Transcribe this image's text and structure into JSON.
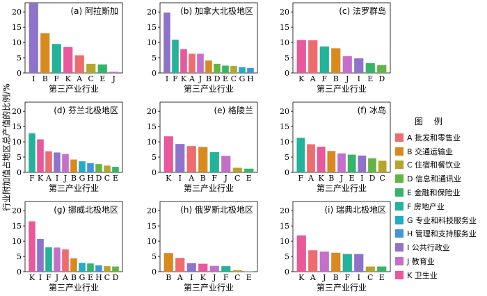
{
  "y_axis_label": "行业附加值占地区总产值的比例/%",
  "legend": {
    "title": "图 例",
    "items": [
      {
        "code": "A",
        "label": "A 批发和零售业",
        "color": "#ee6b6e"
      },
      {
        "code": "B",
        "label": "B 交通运输业",
        "color": "#d98a1f"
      },
      {
        "code": "C",
        "label": "C 住宿和餐饮业",
        "color": "#b5a62b"
      },
      {
        "code": "D",
        "label": "D 信息和通讯业",
        "color": "#63b542"
      },
      {
        "code": "E",
        "label": "E 金融和保险业",
        "color": "#35b567"
      },
      {
        "code": "F",
        "label": "F 房地产业",
        "color": "#23b39a"
      },
      {
        "code": "G",
        "label": "G 专业和科技服务业",
        "color": "#22acc5"
      },
      {
        "code": "H",
        "label": "H 管理和支持服务业",
        "color": "#3f95d8"
      },
      {
        "code": "I",
        "label": "I 公共行政业",
        "color": "#8d73c9"
      },
      {
        "code": "J",
        "label": "J 教育业",
        "color": "#c46fca"
      },
      {
        "code": "K",
        "label": "K 卫生业",
        "color": "#e8589a"
      }
    ]
  },
  "chart_data": [
    {
      "type": "bar",
      "title": "(a) 阿拉斯加",
      "xlabel": "第三产业行业",
      "ylim": [
        0,
        23
      ],
      "yticks": [
        0,
        5,
        10,
        15,
        20
      ],
      "categories": [
        "I",
        "B",
        "F",
        "K",
        "A",
        "C",
        "E",
        "J"
      ],
      "values": [
        22.8,
        13.0,
        9.5,
        8.5,
        5.8,
        3.0,
        2.8,
        0.4
      ]
    },
    {
      "type": "bar",
      "title": "(b) 加拿大北极地区",
      "xlabel": "第三产业行业",
      "ylim": [
        0,
        23
      ],
      "yticks": [
        0,
        5,
        10,
        15,
        20
      ],
      "categories": [
        "I",
        "F",
        "K",
        "A",
        "J",
        "B",
        "D",
        "E",
        "C",
        "G",
        "H"
      ],
      "values": [
        19.8,
        10.9,
        7.8,
        6.3,
        6.3,
        4.1,
        3.0,
        2.4,
        2.3,
        1.9,
        1.6
      ]
    },
    {
      "type": "bar",
      "title": "(c) 法罗群岛",
      "xlabel": "第三产业行业",
      "ylim": [
        0,
        23
      ],
      "yticks": [
        0,
        5,
        10,
        15,
        20
      ],
      "categories": [
        "K",
        "A",
        "F",
        "B",
        "J",
        "I",
        "E",
        "D"
      ],
      "values": [
        10.8,
        10.7,
        8.7,
        8.1,
        5.5,
        4.8,
        3.2,
        2.6
      ]
    },
    {
      "type": "bar",
      "title": "(d) 芬兰北极地区",
      "xlabel": "第三产业行业",
      "ylim": [
        0,
        23
      ],
      "yticks": [
        0,
        5,
        10,
        15,
        20
      ],
      "categories": [
        "F",
        "K",
        "A",
        "I",
        "J",
        "B",
        "G",
        "H",
        "D",
        "C",
        "E"
      ],
      "values": [
        12.8,
        10.8,
        6.9,
        6.5,
        6.0,
        4.2,
        3.6,
        3.0,
        2.7,
        2.2,
        1.8
      ]
    },
    {
      "type": "bar",
      "title": "(e) 格陵兰",
      "xlabel": "第三产业行业",
      "ylim": [
        0,
        23
      ],
      "yticks": [
        0,
        5,
        10,
        15,
        20
      ],
      "categories": [
        "K",
        "I",
        "A",
        "B",
        "F",
        "J",
        "C",
        "E"
      ],
      "values": [
        11.8,
        9.3,
        8.6,
        8.3,
        6.6,
        5.4,
        1.5,
        1.2
      ]
    },
    {
      "type": "bar",
      "title": "(f) 冰岛",
      "xlabel": "第三产业行业",
      "ylim": [
        0,
        23
      ],
      "yticks": [
        0,
        5,
        10,
        15,
        20
      ],
      "categories": [
        "F",
        "A",
        "K",
        "B",
        "J",
        "E",
        "I",
        "D",
        "C"
      ],
      "values": [
        11.3,
        9.2,
        8.4,
        7.0,
        6.2,
        5.8,
        5.5,
        4.6,
        3.8
      ]
    },
    {
      "type": "bar",
      "title": "(g) 挪威北极地区",
      "xlabel": "第三产业行业",
      "ylim": [
        0,
        23
      ],
      "yticks": [
        0,
        5,
        10,
        15,
        20
      ],
      "categories": [
        "K",
        "I",
        "F",
        "J",
        "A",
        "B",
        "G",
        "E",
        "H",
        "C",
        "D"
      ],
      "values": [
        16.5,
        10.7,
        8.0,
        7.9,
        7.3,
        4.4,
        2.9,
        2.7,
        2.1,
        1.8,
        1.7
      ]
    },
    {
      "type": "bar",
      "title": "(h) 俄罗斯北极地区",
      "xlabel": "第三产业行业",
      "ylim": [
        0,
        23
      ],
      "yticks": [
        0,
        5,
        10,
        15,
        20
      ],
      "categories": [
        "B",
        "A",
        "I",
        "K",
        "J",
        "F",
        "C",
        "E"
      ],
      "values": [
        6.1,
        4.5,
        2.8,
        2.6,
        1.9,
        1.8,
        0.5,
        0.1
      ]
    },
    {
      "type": "bar",
      "title": "(i) 瑞典北极地区",
      "xlabel": "第三产业行业",
      "ylim": [
        0,
        23
      ],
      "yticks": [
        0,
        5,
        10,
        15,
        20
      ],
      "categories": [
        "K",
        "A",
        "J",
        "B",
        "F",
        "I",
        "C",
        "E"
      ],
      "values": [
        11.9,
        7.0,
        6.6,
        6.2,
        5.8,
        5.8,
        1.7,
        1.7
      ]
    }
  ]
}
